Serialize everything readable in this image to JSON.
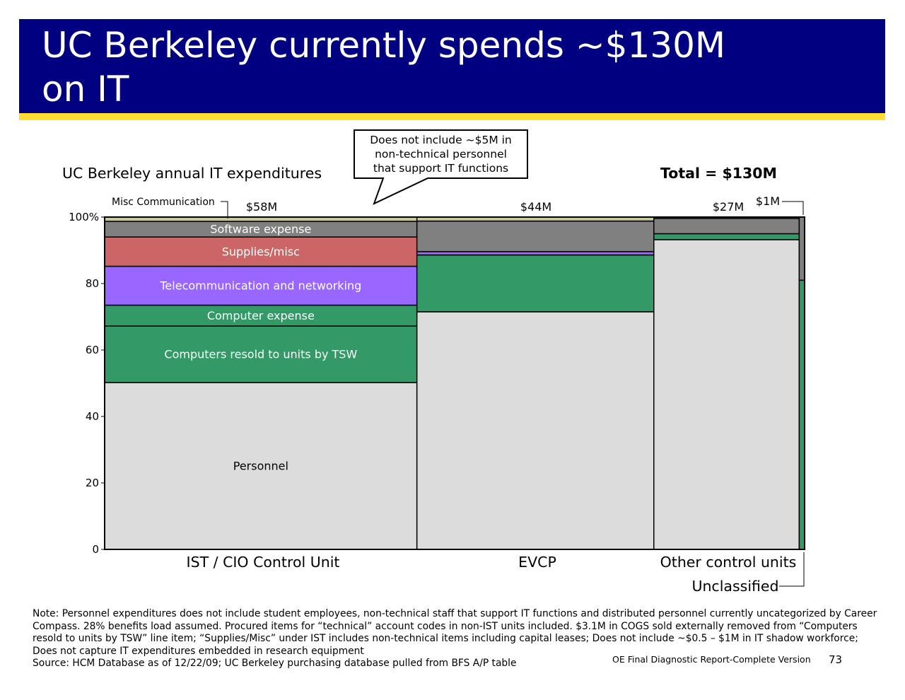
{
  "title": "UC Berkeley currently spends ~$130M\non IT",
  "colors": {
    "title_bg": "#000080",
    "accent_bar": "#FFDD33",
    "personnel": "#DCDCDC",
    "computers_resold": "#339966",
    "computer_expense": "#339966",
    "telecom": "#9966FF",
    "supplies": "#CC6666",
    "software": "#808080",
    "misc_comm": "#C8C89A"
  },
  "callout": "Does not include ~$5M in\nnon-technical personnel\nthat support IT functions",
  "chart_data": {
    "type": "bar",
    "subtype": "marimekko",
    "title": "UC Berkeley annual IT expenditures",
    "total_label": "Total = $130M",
    "y_axis": {
      "ticks": [
        "0",
        "20",
        "40",
        "60",
        "80",
        "100%"
      ],
      "ylim": [
        0,
        100
      ]
    },
    "categories": [
      "IST / CIO Control Unit",
      "EVCP",
      "Other control units",
      "Unclassified"
    ],
    "widths": [
      58,
      44,
      27,
      1
    ],
    "width_labels": [
      "$58M",
      "$44M",
      "$27M",
      "$1M"
    ],
    "series": [
      {
        "name": "Personnel",
        "color": "#DCDCDC",
        "text_color": "#000000",
        "values": [
          50.2,
          71.5,
          93.2,
          0
        ]
      },
      {
        "name": "Computers resold to units by TSW",
        "color": "#339966",
        "text_color": "#ffffff",
        "values": [
          17.0,
          17.1,
          0,
          81.0
        ]
      },
      {
        "name": "Computer expense",
        "color": "#339966",
        "text_color": "#ffffff",
        "values": [
          6.3,
          0,
          1.8,
          0
        ]
      },
      {
        "name": "Telecommunication and networking",
        "color": "#9966FF",
        "text_color": "#ffffff",
        "values": [
          11.7,
          1.0,
          0,
          0
        ]
      },
      {
        "name": "Supplies/misc",
        "color": "#CC6666",
        "text_color": "#ffffff",
        "values": [
          8.8,
          0,
          0,
          0
        ]
      },
      {
        "name": "Software expense",
        "color": "#808080",
        "text_color": "#ffffff",
        "values": [
          4.7,
          9.2,
          4.6,
          19.0
        ]
      },
      {
        "name": "Misc Communication",
        "color": "#C8C89A",
        "text_color": "#000000",
        "values": [
          1.3,
          1.2,
          0.4,
          0
        ]
      }
    ],
    "inside_labels": [
      "Personnel",
      "Computers resold to units by TSW",
      "Computer expense",
      "Telecommunication and networking",
      "Supplies/misc",
      "Software expense"
    ],
    "outside_label": "Misc Communication"
  },
  "notes": {
    "note": "Note: Personnel expenditures does not include student employees, non-technical staff that support IT functions and distributed personnel currently uncategorized by Career Compass. 28% benefits load assumed. Procured items for “technical” account codes in non-IST units included. $3.1M in COGS sold externally removed from “Computers resold to units by TSW” line item; “Supplies/Misc” under IST includes non-technical items including capital leases; Does not include ~$0.5 – $1M in IT shadow workforce; Does not capture IT expenditures embedded in research equipment",
    "source": "Source: HCM Database as of 12/22/09; UC Berkeley purchasing database pulled from BFS A/P table"
  },
  "footer": "OE Final Diagnostic Report-Complete Version",
  "page_number": "73"
}
